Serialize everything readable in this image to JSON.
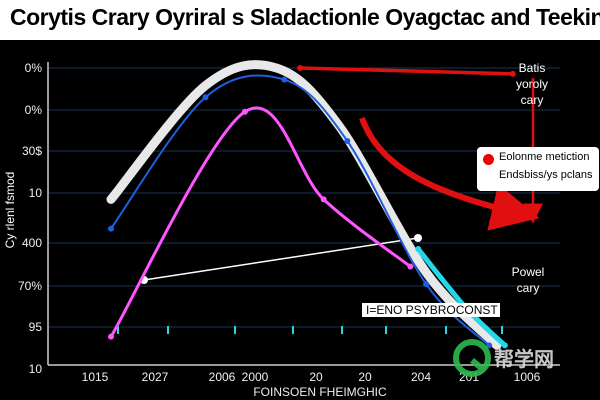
{
  "title": "Corytis Crary Oyriral s Sladactionle Oyagctac and Teeking",
  "chart_data": {
    "type": "line",
    "title": "Corytis Crary Oyriral s Sladactionle Oyagctac and Teeking",
    "xlabel": "FOINSOEN FHEIMGHIC",
    "ylabel": "Cy rlenl fsmod",
    "y_tick_labels": [
      "0%",
      "0%",
      "30$",
      "10",
      "400",
      "70%",
      "95",
      "10"
    ],
    "x_tick_labels": [
      "1015",
      "2027",
      "2006",
      "2000",
      "20",
      "20",
      "204",
      "201",
      "1006"
    ],
    "series": [
      {
        "color": "#e8e8e8",
        "points": [
          [
            0.8,
            0.55
          ],
          [
            2.0,
            0.94
          ],
          [
            2.9,
            1.0
          ],
          [
            3.7,
            0.8
          ],
          [
            4.8,
            0.3
          ],
          [
            5.7,
            0.05
          ]
        ]
      },
      {
        "color": "#1e5fe0",
        "points": [
          [
            0.8,
            0.45
          ],
          [
            2.0,
            0.9
          ],
          [
            3.0,
            0.96
          ],
          [
            3.8,
            0.75
          ],
          [
            4.8,
            0.26
          ],
          [
            5.6,
            0.05
          ]
        ]
      },
      {
        "color": "#ff55ff",
        "points": [
          [
            0.8,
            0.08
          ],
          [
            2.5,
            0.85
          ],
          [
            3.5,
            0.55
          ],
          [
            4.6,
            0.32
          ]
        ]
      },
      {
        "color": "#e01010",
        "points": [
          [
            3.2,
            1.0
          ],
          [
            5.9,
            0.98
          ]
        ]
      },
      {
        "color": "#22d8e8",
        "points": [
          [
            4.7,
            0.38
          ],
          [
            5.3,
            0.18
          ],
          [
            5.8,
            0.05
          ]
        ]
      }
    ],
    "annotations": [
      "Batis",
      "yoroly",
      "cary",
      "Powel",
      "cary",
      "I=ENO PSYBROCONST"
    ],
    "legend": {
      "position": "right",
      "entries": [
        "Eolonme metiction",
        "Endsbiss/ys pclans"
      ]
    },
    "grid": true
  },
  "colors": {
    "background": "#000000",
    "white_curve": "#e8e8e8",
    "blue": "#1e5fe0",
    "magenta": "#ff55ff",
    "red": "#e01010",
    "cyan": "#22d8e8"
  },
  "watermark": {
    "text": "帮学网"
  }
}
